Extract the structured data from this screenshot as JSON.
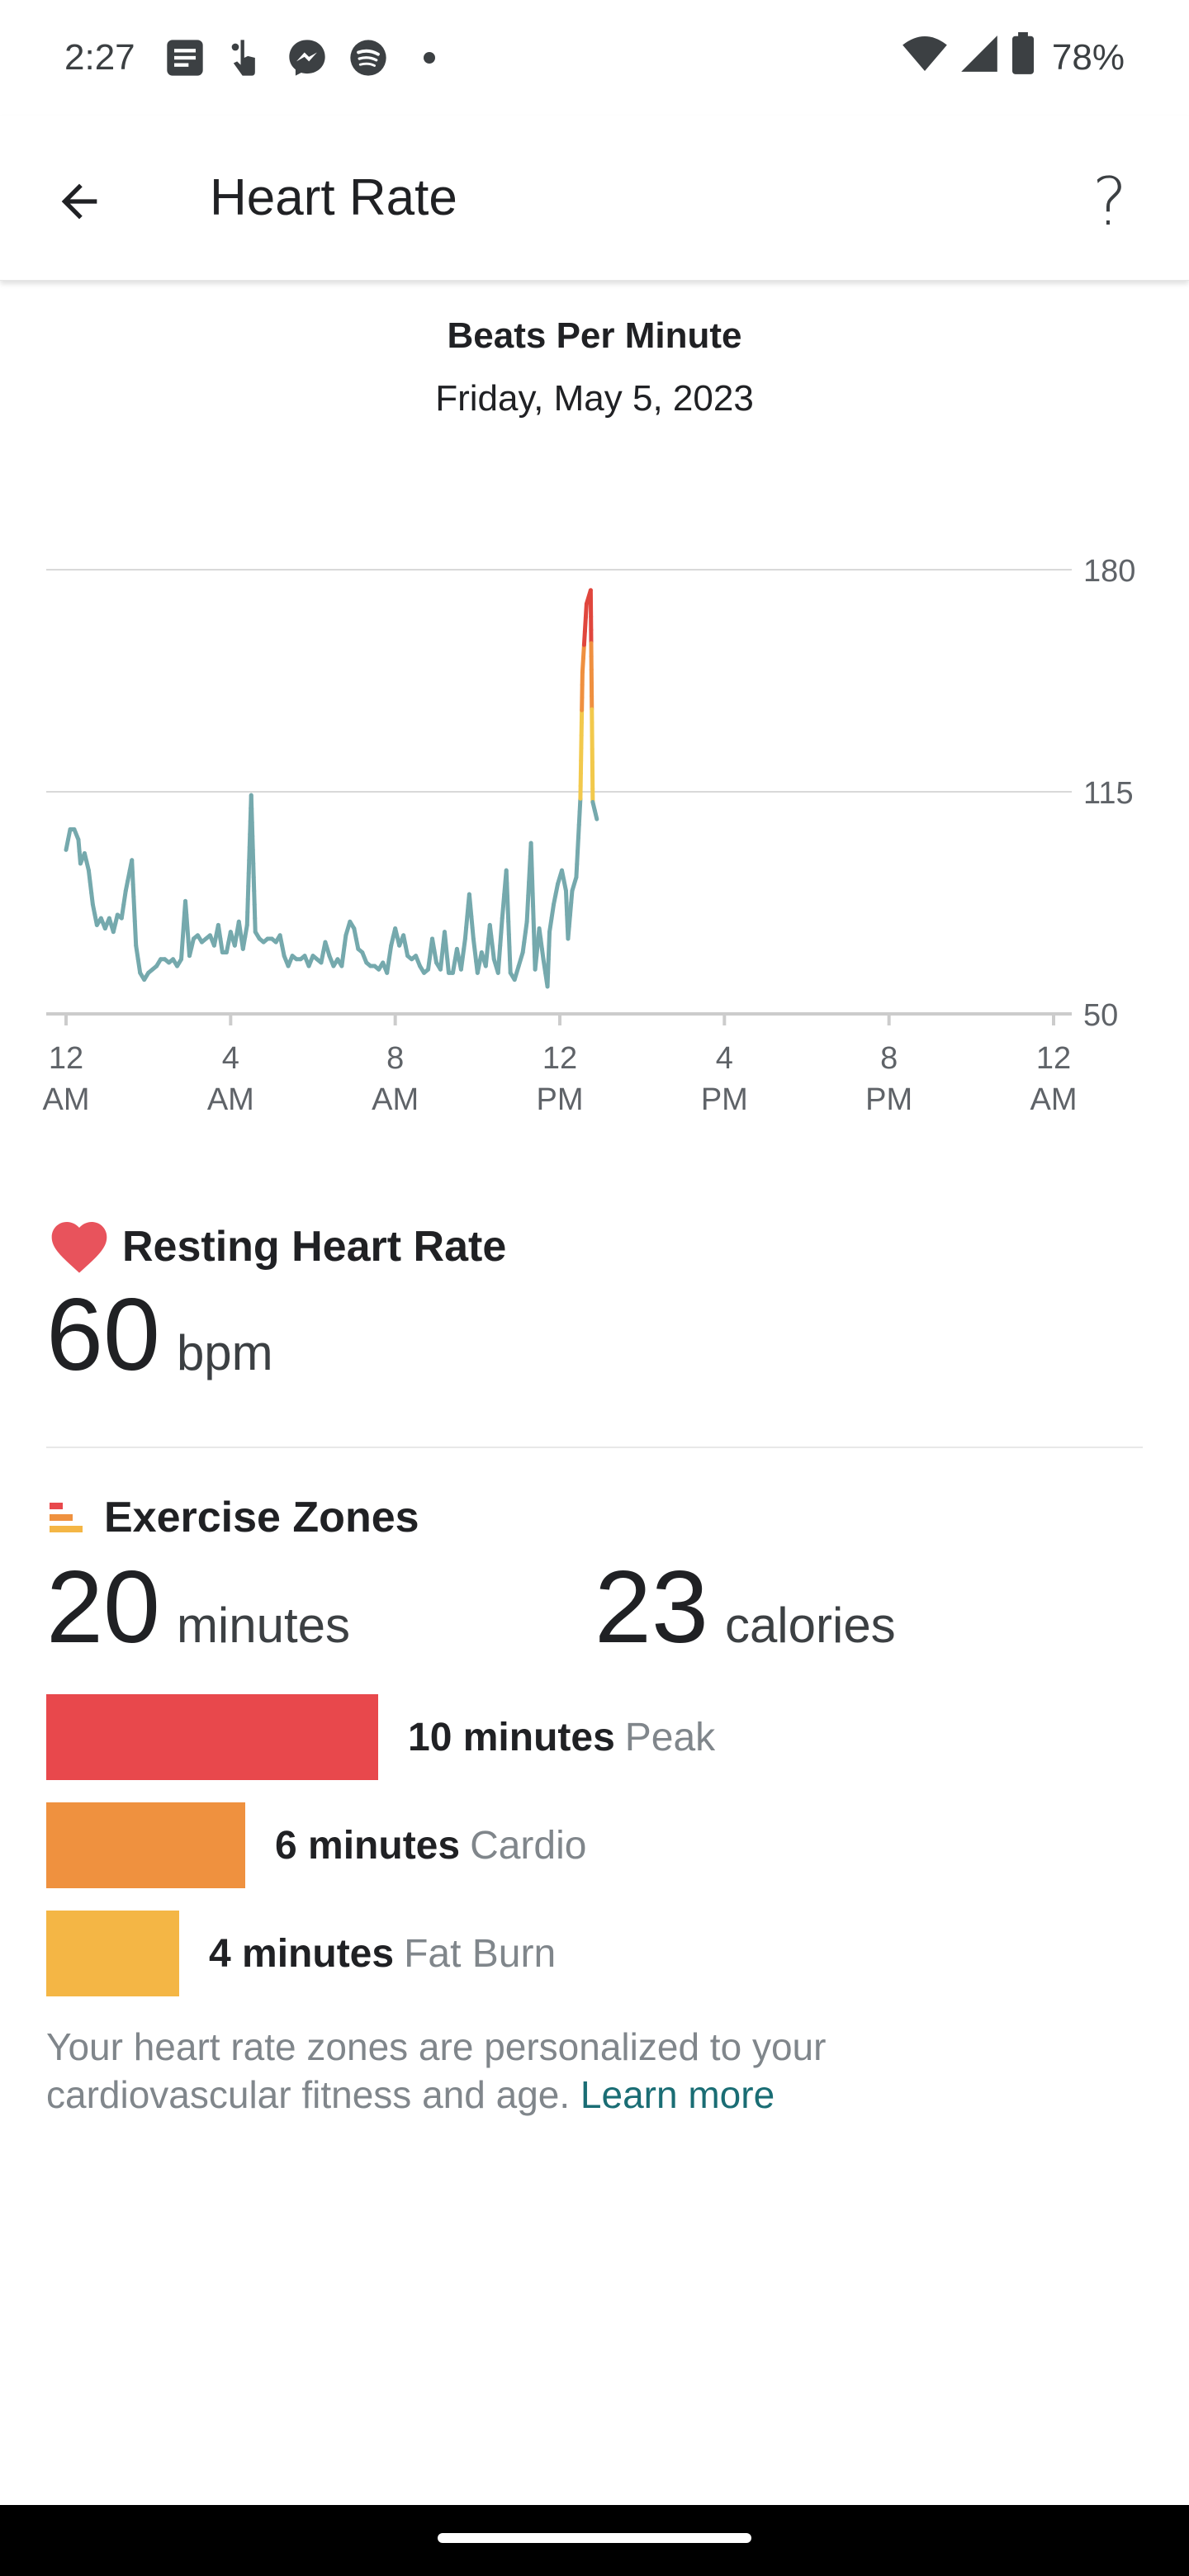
{
  "status_bar": {
    "time": "2:27",
    "battery_percent": "78%",
    "icons": [
      "message-icon",
      "touch-icon",
      "messenger-icon",
      "spotify-icon",
      "dot-icon",
      "wifi-icon",
      "signal-icon",
      "battery-icon"
    ]
  },
  "app_bar": {
    "title": "Heart Rate",
    "help_label": "?"
  },
  "chart": {
    "heading": "Beats Per Minute",
    "date": "Friday, May 5, 2023"
  },
  "chart_data": {
    "type": "line",
    "title": "Beats Per Minute",
    "subtitle": "Friday, May 5, 2023",
    "ylim": [
      50,
      180
    ],
    "yticks": [
      180,
      115,
      50
    ],
    "xticks": [
      {
        "hour": 0,
        "top": "12",
        "bottom": "AM"
      },
      {
        "hour": 4,
        "top": "4",
        "bottom": "AM"
      },
      {
        "hour": 8,
        "top": "8",
        "bottom": "AM"
      },
      {
        "hour": 12,
        "top": "12",
        "bottom": "PM"
      },
      {
        "hour": 16,
        "top": "4",
        "bottom": "PM"
      },
      {
        "hour": 20,
        "top": "8",
        "bottom": "PM"
      },
      {
        "hour": 24,
        "top": "12",
        "bottom": "AM"
      }
    ],
    "xlim": [
      0,
      24
    ],
    "grid": true,
    "zone_colors": {
      "normal": "#75a9ad",
      "fat_burn": "#f2c94c",
      "cardio": "#ef9040",
      "peak": "#e0463d"
    },
    "series": [
      {
        "values": [
          [
            0.0,
            98
          ],
          [
            0.1,
            104
          ],
          [
            0.2,
            104
          ],
          [
            0.3,
            101
          ],
          [
            0.35,
            94
          ],
          [
            0.45,
            97
          ],
          [
            0.55,
            92
          ],
          [
            0.65,
            82
          ],
          [
            0.75,
            76
          ],
          [
            0.85,
            78
          ],
          [
            0.95,
            75
          ],
          [
            1.05,
            78
          ],
          [
            1.15,
            74
          ],
          [
            1.25,
            79
          ],
          [
            1.35,
            78
          ],
          [
            1.45,
            86
          ],
          [
            1.55,
            92
          ],
          [
            1.6,
            95
          ],
          [
            1.7,
            70
          ],
          [
            1.8,
            62
          ],
          [
            1.9,
            60
          ],
          [
            2.0,
            62
          ],
          [
            2.1,
            63
          ],
          [
            2.2,
            64
          ],
          [
            2.3,
            66
          ],
          [
            2.4,
            66
          ],
          [
            2.5,
            65
          ],
          [
            2.6,
            66
          ],
          [
            2.7,
            64
          ],
          [
            2.8,
            66
          ],
          [
            2.9,
            83
          ],
          [
            3.0,
            67
          ],
          [
            3.1,
            72
          ],
          [
            3.2,
            73
          ],
          [
            3.3,
            71
          ],
          [
            3.4,
            72
          ],
          [
            3.5,
            73
          ],
          [
            3.6,
            70
          ],
          [
            3.7,
            76
          ],
          [
            3.8,
            68
          ],
          [
            3.9,
            68
          ],
          [
            4.0,
            74
          ],
          [
            4.1,
            70
          ],
          [
            4.2,
            77
          ],
          [
            4.3,
            69
          ],
          [
            4.4,
            76
          ],
          [
            4.5,
            114
          ],
          [
            4.6,
            74
          ],
          [
            4.7,
            72
          ],
          [
            4.8,
            71
          ],
          [
            4.9,
            72
          ],
          [
            5.0,
            72
          ],
          [
            5.1,
            71
          ],
          [
            5.2,
            73
          ],
          [
            5.3,
            67
          ],
          [
            5.4,
            64
          ],
          [
            5.5,
            67
          ],
          [
            5.6,
            66
          ],
          [
            5.7,
            66
          ],
          [
            5.8,
            67
          ],
          [
            5.9,
            64
          ],
          [
            6.0,
            67
          ],
          [
            6.1,
            66
          ],
          [
            6.2,
            65
          ],
          [
            6.3,
            71
          ],
          [
            6.4,
            67
          ],
          [
            6.5,
            64
          ],
          [
            6.6,
            66
          ],
          [
            6.7,
            64
          ],
          [
            6.8,
            73
          ],
          [
            6.9,
            77
          ],
          [
            7.0,
            75
          ],
          [
            7.1,
            69
          ],
          [
            7.2,
            68
          ],
          [
            7.3,
            65
          ],
          [
            7.4,
            64
          ],
          [
            7.5,
            64
          ],
          [
            7.6,
            63
          ],
          [
            7.7,
            65
          ],
          [
            7.8,
            62
          ],
          [
            7.9,
            70
          ],
          [
            8.0,
            75
          ],
          [
            8.1,
            70
          ],
          [
            8.2,
            73
          ],
          [
            8.3,
            67
          ],
          [
            8.4,
            66
          ],
          [
            8.5,
            67
          ],
          [
            8.6,
            64
          ],
          [
            8.7,
            62
          ],
          [
            8.8,
            63
          ],
          [
            8.9,
            72
          ],
          [
            9.0,
            65
          ],
          [
            9.1,
            63
          ],
          [
            9.2,
            74
          ],
          [
            9.3,
            62
          ],
          [
            9.4,
            62
          ],
          [
            9.5,
            69
          ],
          [
            9.6,
            63
          ],
          [
            9.7,
            72
          ],
          [
            9.8,
            85
          ],
          [
            9.9,
            72
          ],
          [
            10.0,
            62
          ],
          [
            10.1,
            68
          ],
          [
            10.2,
            64
          ],
          [
            10.3,
            76
          ],
          [
            10.4,
            66
          ],
          [
            10.5,
            62
          ],
          [
            10.6,
            78
          ],
          [
            10.7,
            92
          ],
          [
            10.8,
            62
          ],
          [
            10.9,
            60
          ],
          [
            11.0,
            64
          ],
          [
            11.1,
            68
          ],
          [
            11.2,
            77
          ],
          [
            11.3,
            100
          ],
          [
            11.4,
            63
          ],
          [
            11.5,
            75
          ],
          [
            11.6,
            66
          ],
          [
            11.7,
            58
          ],
          [
            11.75,
            74
          ],
          [
            11.85,
            82
          ],
          [
            11.95,
            88
          ],
          [
            12.05,
            92
          ],
          [
            12.15,
            86
          ],
          [
            12.2,
            72
          ],
          [
            12.3,
            86
          ],
          [
            12.4,
            90
          ],
          [
            12.5,
            113
          ],
          [
            12.55,
            150
          ],
          [
            12.65,
            170
          ],
          [
            12.75,
            174
          ],
          [
            12.8,
            112
          ],
          [
            12.9,
            107
          ]
        ]
      }
    ]
  },
  "resting_heart_rate": {
    "title": "Resting Heart Rate",
    "value": "60",
    "unit": "bpm"
  },
  "exercise_zones": {
    "title": "Exercise Zones",
    "minutes_value": "20",
    "minutes_unit": "minutes",
    "calories_value": "23",
    "calories_unit": "calories",
    "zones": [
      {
        "minutes_label": "10 minutes",
        "name": "Peak",
        "minutes": 10,
        "color": "#e8484c"
      },
      {
        "minutes_label": "6 minutes",
        "name": "Cardio",
        "minutes": 6,
        "color": "#ef913f"
      },
      {
        "minutes_label": "4 minutes",
        "name": "Fat Burn",
        "minutes": 4,
        "color": "#f4b645"
      }
    ],
    "note": "Your heart rate zones are personalized to your cardiovascular fitness and age.",
    "learn_more": "Learn more"
  }
}
